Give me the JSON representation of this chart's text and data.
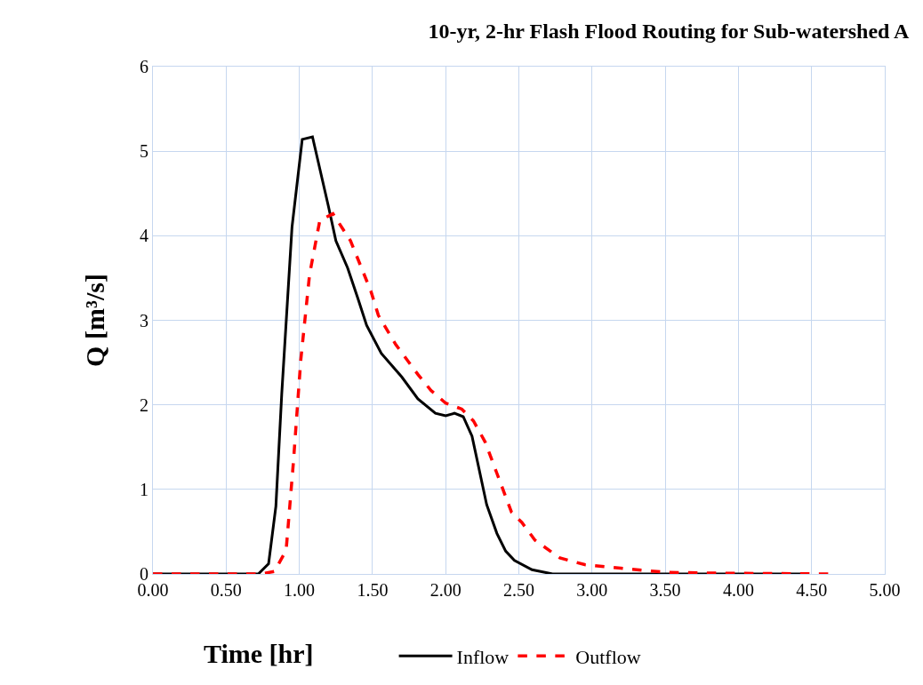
{
  "chart_data": {
    "type": "line",
    "title": "10-yr, 2-hr Flash Flood Routing for Sub-watershed A",
    "xlabel": "Time [hr]",
    "ylabel": "Q [m³/s]",
    "xlim": [
      0,
      5
    ],
    "ylim": [
      0,
      6
    ],
    "xticks": [
      {
        "value": 0,
        "label": "0.00"
      },
      {
        "value": 0.5,
        "label": "0.50"
      },
      {
        "value": 1,
        "label": "1.00"
      },
      {
        "value": 1.5,
        "label": "1.50"
      },
      {
        "value": 2,
        "label": "2.00"
      },
      {
        "value": 2.5,
        "label": "2.50"
      },
      {
        "value": 3,
        "label": "3.00"
      },
      {
        "value": 3.5,
        "label": "3.50"
      },
      {
        "value": 4,
        "label": "4.00"
      },
      {
        "value": 4.5,
        "label": "4.50"
      },
      {
        "value": 5,
        "label": "5.00"
      }
    ],
    "yticks": [
      0,
      1,
      2,
      3,
      4,
      5,
      6
    ],
    "grid": true,
    "legend": "bottom",
    "marker": "none",
    "series": [
      {
        "name": "Inflow",
        "color": "#000000",
        "line_style": "solid",
        "x": [
          0,
          0.72,
          0.79,
          0.84,
          0.88,
          0.95,
          1.02,
          1.09,
          1.2,
          1.25,
          1.33,
          1.4,
          1.46,
          1.56,
          1.7,
          1.81,
          1.93,
          2.0,
          2.06,
          2.12,
          2.18,
          2.28,
          2.35,
          2.41,
          2.47,
          2.59,
          2.73,
          4.43
        ],
        "values": [
          0,
          0,
          0.12,
          0.8,
          2.13,
          4.1,
          5.14,
          5.17,
          4.34,
          3.94,
          3.62,
          3.26,
          2.94,
          2.61,
          2.33,
          2.07,
          1.9,
          1.87,
          1.9,
          1.86,
          1.63,
          0.82,
          0.48,
          0.27,
          0.16,
          0.05,
          0,
          0
        ]
      },
      {
        "name": "Outflow",
        "color": "#ff0000",
        "line_style": "dashed",
        "x": [
          0,
          0.74,
          0.83,
          0.91,
          0.96,
          1.01,
          1.07,
          1.14,
          1.23,
          1.35,
          1.49,
          1.54,
          1.66,
          1.81,
          1.9,
          2.0,
          2.11,
          2.19,
          2.27,
          2.35,
          2.45,
          2.52,
          2.61,
          2.78,
          2.95,
          3.18,
          3.5,
          3.79,
          4.66
        ],
        "values": [
          0,
          0,
          0.03,
          0.28,
          1.33,
          2.53,
          3.54,
          4.18,
          4.26,
          3.94,
          3.34,
          3.06,
          2.71,
          2.36,
          2.17,
          2.02,
          1.95,
          1.81,
          1.56,
          1.19,
          0.73,
          0.61,
          0.4,
          0.19,
          0.11,
          0.07,
          0.02,
          0.01,
          0
        ]
      }
    ]
  }
}
